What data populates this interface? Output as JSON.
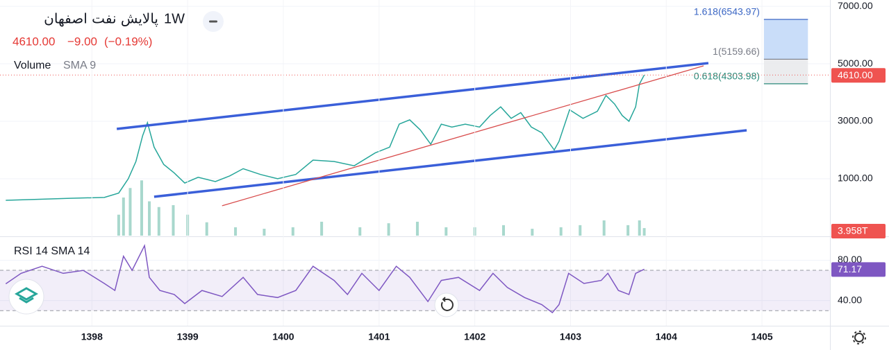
{
  "header": {
    "title": "پالایش نفت اصفهان",
    "interval": "1W",
    "change": "−9.00",
    "change_pct": "(−0.19%)"
  },
  "chart_data": [
    {
      "type": "line",
      "title": "Volume",
      "subtitle": "SMA 9",
      "color": "#26a69a",
      "grid": true,
      "xlim": [
        1397.04,
        1405.71
      ],
      "ylim": [
        -980,
        7220
      ],
      "yticks": [
        {
          "value": 1000,
          "label": "1000.00"
        },
        {
          "value": 3000,
          "label": "3000.00"
        },
        {
          "value": 5000,
          "label": "5000.00"
        },
        {
          "value": 7000,
          "label": "7000.00"
        }
      ],
      "x": [
        1397.1,
        1397.4,
        1397.77,
        1398.13,
        1398.28,
        1398.38,
        1398.46,
        1398.53,
        1398.58,
        1398.65,
        1398.75,
        1398.86,
        1398.97,
        1399.11,
        1399.29,
        1399.44,
        1399.58,
        1399.76,
        1399.94,
        1400.13,
        1400.31,
        1400.53,
        1400.74,
        1400.96,
        1401.11,
        1401.21,
        1401.32,
        1401.43,
        1401.54,
        1401.65,
        1401.76,
        1401.9,
        1402.05,
        1402.16,
        1402.27,
        1402.38,
        1402.48,
        1402.59,
        1402.7,
        1402.83,
        1402.88,
        1402.99,
        1403.13,
        1403.28,
        1403.37,
        1403.46,
        1403.54,
        1403.61,
        1403.68,
        1403.72,
        1403.77
      ],
      "values": [
        250,
        280,
        320,
        350,
        500,
        1000,
        1600,
        2500,
        2950,
        2100,
        1500,
        1200,
        850,
        1050,
        900,
        1100,
        1350,
        1150,
        1000,
        1150,
        1650,
        1600,
        1450,
        1900,
        2100,
        2900,
        3050,
        2700,
        2200,
        2900,
        2800,
        2900,
        2800,
        3200,
        3500,
        3100,
        3300,
        2800,
        2600,
        2000,
        2300,
        3400,
        3100,
        3350,
        3900,
        3600,
        3200,
        3000,
        3500,
        4300,
        4610
      ],
      "current_label": "4610.00",
      "trendlines": [
        {
          "x": [
            1398.26,
            1404.44
          ],
          "y": [
            2735,
            5024
          ],
          "color": "#3a5fd9",
          "style": "thick"
        },
        {
          "x": [
            1398.65,
            1404.84
          ],
          "y": [
            373,
            2687
          ],
          "color": "#3a5fd9",
          "style": "thick"
        },
        {
          "x": [
            1399.36,
            1404.39
          ],
          "y": [
            60,
            4928
          ],
          "color": "#d84b4b",
          "style": "thin"
        }
      ],
      "fib": {
        "x": [
          1405.02,
          1405.48
        ],
        "levels": [
          {
            "value": 6543.97,
            "label": "1.618(6543.97)",
            "color": "#3a66c4"
          },
          {
            "value": 5159.66,
            "label": "1(5159.66)",
            "color": "#787b86"
          },
          {
            "value": 4303.98,
            "label": "0.618(4303.98)",
            "color": "#2a8a7a"
          }
        ]
      }
    },
    {
      "type": "bar",
      "color": "#a8d8cd",
      "xlim": [
        1397.04,
        1405.71
      ],
      "ylim": [
        0,
        40
      ],
      "x": [
        1398.28,
        1398.33,
        1398.4,
        1398.52,
        1398.6,
        1398.7,
        1398.85,
        1399.0,
        1399.2,
        1399.5,
        1399.8,
        1400.1,
        1400.4,
        1400.8,
        1401.1,
        1401.4,
        1401.7,
        1402.0,
        1402.3,
        1402.6,
        1402.9,
        1403.1,
        1403.35,
        1403.6,
        1403.72,
        1403.77
      ],
      "values": [
        11,
        20,
        25,
        29,
        18,
        15,
        16,
        11,
        7,
        4.4,
        3.6,
        4.4,
        7.3,
        4.4,
        6.5,
        7.3,
        4.4,
        4.4,
        5.5,
        3.6,
        4.4,
        5.5,
        8,
        5.5,
        8,
        3.958
      ],
      "current_label": "3.958T"
    },
    {
      "type": "line",
      "title": "RSI 14 SMA 14",
      "color": "#7e57c2",
      "xlim": [
        1397.04,
        1405.71
      ],
      "ylim": [
        15,
        101
      ],
      "yticks": [
        {
          "value": 40,
          "label": "40.00"
        },
        {
          "value": 80,
          "label": "80.00"
        }
      ],
      "levels": [
        70,
        30
      ],
      "xticks": [
        1398,
        1399,
        1400,
        1401,
        1402,
        1403,
        1404,
        1405
      ],
      "x": [
        1397.1,
        1397.26,
        1397.48,
        1397.7,
        1397.91,
        1398.13,
        1398.24,
        1398.33,
        1398.42,
        1398.55,
        1398.6,
        1398.71,
        1398.86,
        1398.97,
        1399.15,
        1399.36,
        1399.58,
        1399.73,
        1399.94,
        1400.13,
        1400.31,
        1400.53,
        1400.67,
        1400.82,
        1401.0,
        1401.18,
        1401.32,
        1401.51,
        1401.65,
        1401.83,
        1402.05,
        1402.19,
        1402.34,
        1402.52,
        1402.7,
        1402.81,
        1402.88,
        1402.98,
        1403.14,
        1403.32,
        1403.39,
        1403.5,
        1403.61,
        1403.68,
        1403.77
      ],
      "values": [
        56.6,
        67,
        74,
        67,
        70,
        57,
        50,
        84,
        70,
        94.5,
        63,
        50,
        46,
        37,
        50,
        44,
        63,
        46,
        43,
        50,
        74,
        60,
        46,
        67,
        50,
        74,
        63,
        39,
        60,
        63,
        50,
        67,
        53,
        43,
        36,
        28,
        36,
        67,
        57,
        60,
        67,
        50,
        46,
        67,
        71.17
      ],
      "current_label": "71.17"
    }
  ]
}
